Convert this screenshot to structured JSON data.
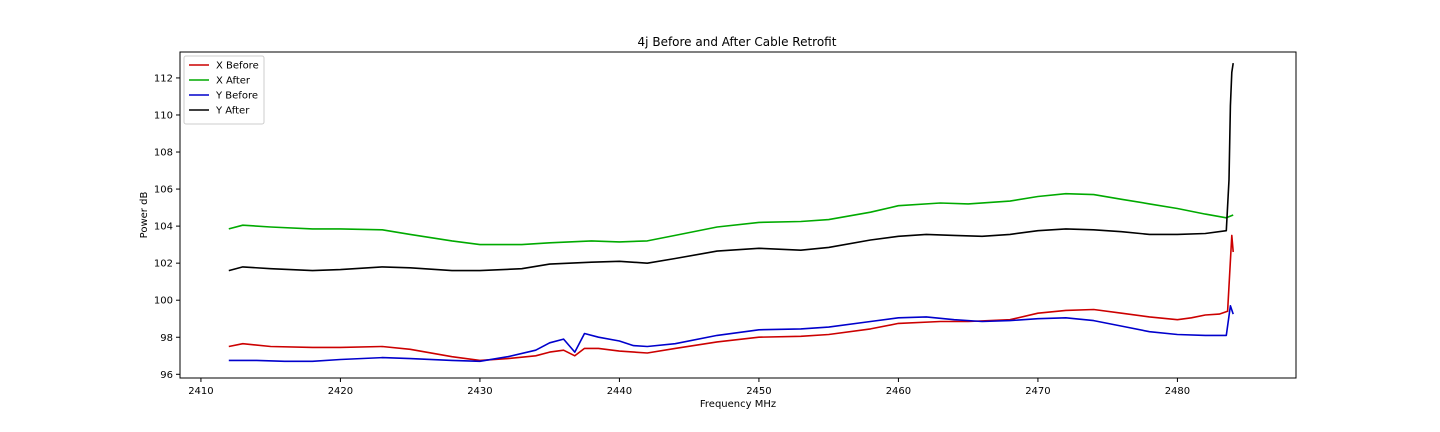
{
  "chart_data": {
    "type": "line",
    "title": "4j Before and After Cable Retrofit",
    "xlabel": "Frequency MHz",
    "ylabel": "Power dB",
    "xlim": [
      2408.5,
      2488.5
    ],
    "ylim": [
      95.8,
      113.4
    ],
    "xticks": [
      2410,
      2420,
      2430,
      2440,
      2450,
      2460,
      2470,
      2480
    ],
    "yticks": [
      96,
      98,
      100,
      102,
      104,
      106,
      108,
      110,
      112
    ],
    "grid": false,
    "legend_position": "upper-left",
    "series": [
      {
        "name": "X Before",
        "color": "#cc0000",
        "x": [
          2412,
          2413,
          2415,
          2418,
          2420,
          2423,
          2425,
          2428,
          2430,
          2432,
          2434,
          2435,
          2436,
          2436.8,
          2437.5,
          2438.5,
          2440,
          2442,
          2444,
          2447,
          2450,
          2453,
          2455,
          2458,
          2460,
          2463,
          2465,
          2468,
          2470,
          2472,
          2474,
          2476,
          2478,
          2480,
          2481,
          2482,
          2483,
          2483.6,
          2483.9,
          2484
        ],
        "y": [
          97.5,
          97.65,
          97.5,
          97.45,
          97.45,
          97.5,
          97.35,
          96.95,
          96.75,
          96.85,
          97.0,
          97.2,
          97.3,
          97.0,
          97.4,
          97.4,
          97.25,
          97.15,
          97.4,
          97.75,
          98.0,
          98.05,
          98.15,
          98.45,
          98.75,
          98.85,
          98.85,
          98.95,
          99.3,
          99.45,
          99.5,
          99.3,
          99.1,
          98.95,
          99.05,
          99.2,
          99.25,
          99.4,
          103.5,
          102.6
        ]
      },
      {
        "name": "X After",
        "color": "#00aa00",
        "x": [
          2412,
          2413,
          2415,
          2418,
          2420,
          2423,
          2425,
          2428,
          2430,
          2433,
          2435,
          2438,
          2440,
          2442,
          2444,
          2447,
          2450,
          2453,
          2455,
          2458,
          2460,
          2463,
          2465,
          2468,
          2470,
          2472,
          2474,
          2476,
          2478,
          2480,
          2482,
          2483.5,
          2484
        ],
        "y": [
          103.85,
          104.05,
          103.95,
          103.85,
          103.85,
          103.8,
          103.55,
          103.2,
          103.0,
          103.0,
          103.1,
          103.2,
          103.15,
          103.2,
          103.5,
          103.95,
          104.2,
          104.25,
          104.35,
          104.75,
          105.1,
          105.25,
          105.2,
          105.35,
          105.6,
          105.75,
          105.7,
          105.45,
          105.2,
          104.95,
          104.65,
          104.45,
          104.6
        ]
      },
      {
        "name": "Y Before",
        "color": "#0000cc",
        "x": [
          2412,
          2414,
          2416,
          2418,
          2420,
          2423,
          2425,
          2428,
          2430,
          2432,
          2434,
          2435,
          2436,
          2436.8,
          2437.5,
          2438.5,
          2440,
          2441,
          2442,
          2444,
          2447,
          2450,
          2453,
          2455,
          2458,
          2460,
          2462,
          2464,
          2466,
          2468,
          2470,
          2472,
          2474,
          2476,
          2478,
          2480,
          2482,
          2483.5,
          2483.8,
          2484
        ],
        "y": [
          96.75,
          96.75,
          96.7,
          96.7,
          96.8,
          96.9,
          96.85,
          96.75,
          96.7,
          96.95,
          97.3,
          97.7,
          97.9,
          97.2,
          98.2,
          98.0,
          97.8,
          97.55,
          97.5,
          97.65,
          98.1,
          98.4,
          98.45,
          98.55,
          98.85,
          99.05,
          99.1,
          98.95,
          98.85,
          98.9,
          99.0,
          99.05,
          98.9,
          98.6,
          98.3,
          98.15,
          98.1,
          98.1,
          99.7,
          99.25
        ]
      },
      {
        "name": "Y After",
        "color": "#000000",
        "x": [
          2412,
          2413,
          2415,
          2418,
          2420,
          2423,
          2425,
          2428,
          2430,
          2433,
          2435,
          2438,
          2440,
          2442,
          2444,
          2447,
          2450,
          2453,
          2455,
          2458,
          2460,
          2462,
          2464,
          2466,
          2468,
          2470,
          2472,
          2474,
          2476,
          2478,
          2480,
          2482,
          2483.5,
          2483.7,
          2483.8,
          2483.9,
          2484
        ],
        "y": [
          101.6,
          101.8,
          101.7,
          101.6,
          101.65,
          101.8,
          101.75,
          101.6,
          101.6,
          101.7,
          101.95,
          102.05,
          102.1,
          102.0,
          102.25,
          102.65,
          102.8,
          102.7,
          102.85,
          103.25,
          103.45,
          103.55,
          103.5,
          103.45,
          103.55,
          103.75,
          103.85,
          103.8,
          103.7,
          103.55,
          103.55,
          103.6,
          103.75,
          106.5,
          110.5,
          112.3,
          112.8
        ]
      }
    ]
  }
}
